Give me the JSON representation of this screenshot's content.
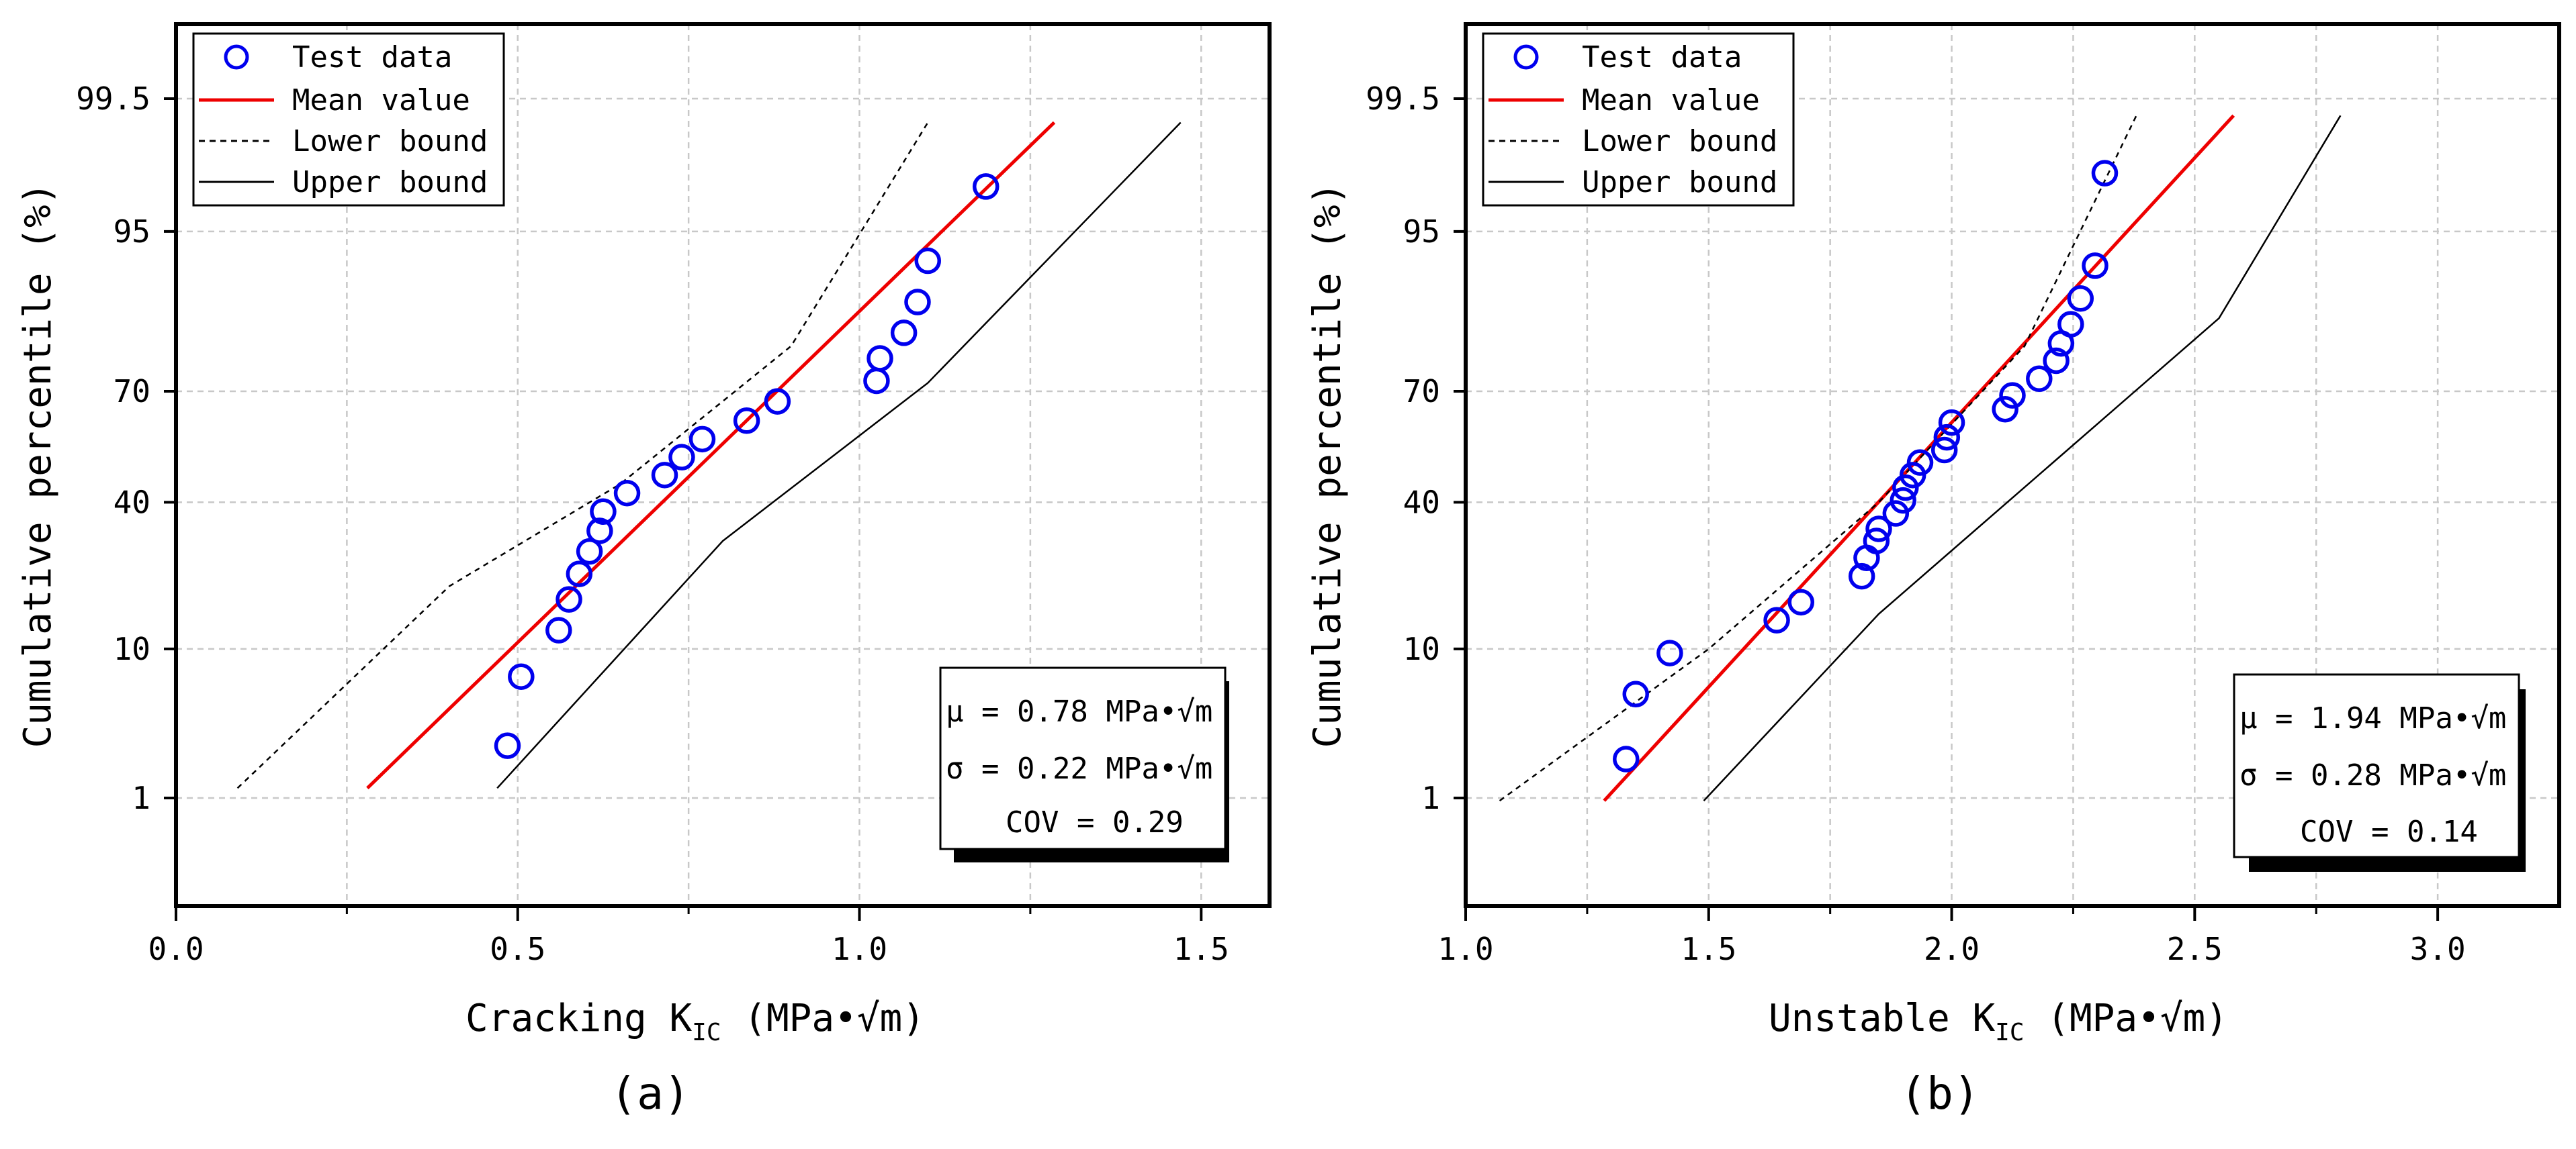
{
  "chart_data": [
    {
      "type": "scatter",
      "panel_label": "(a)",
      "xlabel_main": "Cracking K",
      "xlabel_sub": "IC",
      "xlabel_unit": "(MPa•√m)",
      "ylabel": "Cumulative percentile (%)",
      "xlim": [
        0.0,
        1.6
      ],
      "xticks": [
        0.0,
        0.5,
        1.0,
        1.5
      ],
      "xtick_labels": [
        "0.0",
        "0.5",
        "1.0",
        "1.5"
      ],
      "yaxis_scale": "normal-probability",
      "ylim": [
        0.1,
        99.92
      ],
      "yticks": [
        1,
        10,
        40,
        70,
        95,
        99.5
      ],
      "ytick_labels": [
        "1",
        "10",
        "40",
        "70",
        "95",
        "99.5"
      ],
      "grid": true,
      "legend_position": "top-left",
      "legend": [
        "Test data",
        "Mean value",
        "Lower bound",
        "Upper bound"
      ],
      "series": [
        {
          "name": "Test data",
          "kind": "markers",
          "color": "#0000ee",
          "x": [
            0.485,
            0.505,
            0.56,
            0.575,
            0.59,
            0.605,
            0.62,
            0.625,
            0.66,
            0.715,
            0.74,
            0.77,
            0.835,
            0.88,
            1.025,
            1.03,
            1.065,
            1.085,
            1.1,
            1.185
          ],
          "y": [
            2.5,
            7,
            12.5,
            17.5,
            22.5,
            27.5,
            32.5,
            37.5,
            42.5,
            47.5,
            52.5,
            57.5,
            62.5,
            67.5,
            72.5,
            77.5,
            82.5,
            87.5,
            92.5,
            97.5
          ]
        },
        {
          "name": "Mean value",
          "kind": "line",
          "color": "#ee0000",
          "x": [
            0.28,
            1.285
          ],
          "y": [
            1.2,
            99.2
          ]
        },
        {
          "name": "Lower bound",
          "kind": "dashed",
          "color": "#000000",
          "x": [
            0.09,
            0.4,
            0.65,
            0.9,
            1.1
          ],
          "y": [
            1.2,
            20,
            45,
            80,
            99.2
          ]
        },
        {
          "name": "Upper bound",
          "kind": "thin",
          "color": "#000000",
          "x": [
            0.47,
            0.8,
            1.1,
            1.47
          ],
          "y": [
            1.2,
            30,
            72,
            99.2
          ]
        }
      ],
      "stats": {
        "mu": "μ = 0.78 MPa•√m",
        "sigma": "σ = 0.22 MPa•√m",
        "cov": "COV = 0.29"
      }
    },
    {
      "type": "scatter",
      "panel_label": "(b)",
      "xlabel_main": "Unstable K",
      "xlabel_sub": "IC",
      "xlabel_unit": "(MPa•√m)",
      "ylabel": "Cumulative percentile (%)",
      "xlim": [
        1.0,
        3.25
      ],
      "xticks": [
        1.0,
        1.5,
        2.0,
        2.5,
        3.0
      ],
      "xtick_labels": [
        "1.0",
        "1.5",
        "2.0",
        "2.5",
        "3.0"
      ],
      "yaxis_scale": "normal-probability",
      "ylim": [
        0.1,
        99.92
      ],
      "yticks": [
        1,
        10,
        40,
        70,
        95,
        99.5
      ],
      "ytick_labels": [
        "1",
        "10",
        "40",
        "70",
        "95",
        "99.5"
      ],
      "grid": true,
      "legend_position": "top-left",
      "legend": [
        "Test data",
        "Mean value",
        "Lower bound",
        "Upper bound"
      ],
      "series": [
        {
          "name": "Test data",
          "kind": "markers",
          "color": "#0000ee",
          "x": [
            1.33,
            1.35,
            1.42,
            1.64,
            1.69,
            1.815,
            1.825,
            1.845,
            1.85,
            1.885,
            1.9,
            1.905,
            1.92,
            1.935,
            1.985,
            1.99,
            2.0,
            2.11,
            2.125,
            2.18,
            2.215,
            2.225,
            2.245,
            2.265,
            2.295,
            2.315
          ],
          "y": [
            2,
            5.5,
            9.5,
            14,
            17,
            22,
            26,
            30,
            33,
            37,
            40.5,
            44,
            47.5,
            51,
            54.5,
            58,
            62,
            65.5,
            69,
            73,
            77,
            80.5,
            84,
            88,
            92,
            98
          ]
        },
        {
          "name": "Mean value",
          "kind": "line",
          "color": "#ee0000",
          "x": [
            1.285,
            2.58
          ],
          "y": [
            0.95,
            99.3
          ]
        },
        {
          "name": "Lower bound",
          "kind": "dashed",
          "color": "#000000",
          "x": [
            1.07,
            1.5,
            1.85,
            2.15,
            2.38
          ],
          "y": [
            0.95,
            10,
            40,
            80,
            99.3
          ]
        },
        {
          "name": "Upper bound",
          "kind": "thin",
          "color": "#000000",
          "x": [
            1.49,
            1.85,
            2.2,
            2.55,
            2.8
          ],
          "y": [
            0.95,
            15,
            50,
            85,
            99.3
          ]
        }
      ],
      "stats": {
        "mu": "μ = 1.94 MPa•√m",
        "sigma": "σ = 0.28 MPa•√m",
        "cov": "COV = 0.14"
      }
    }
  ]
}
